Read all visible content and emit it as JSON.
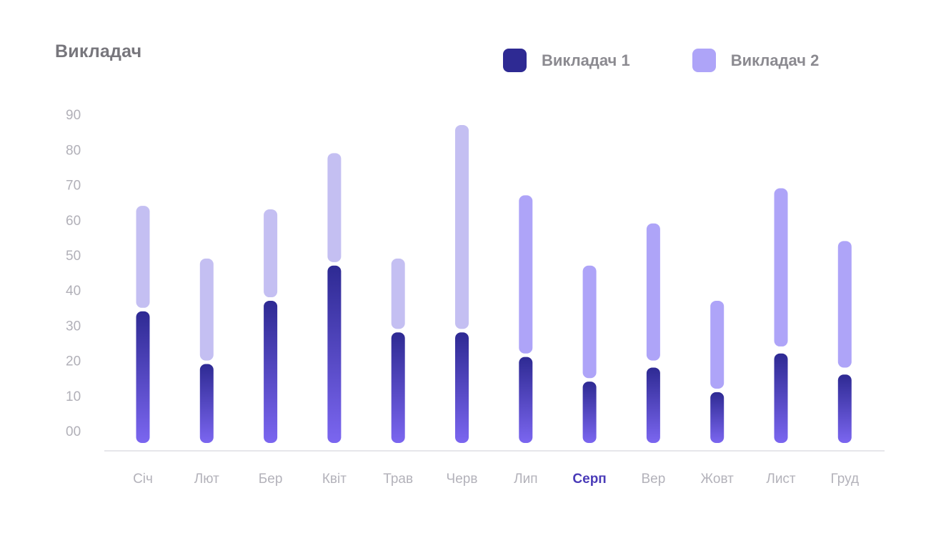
{
  "chart_data": {
    "type": "bar",
    "title": "Викладач",
    "categories": [
      "Січ",
      "Лют",
      "Бер",
      "Квіт",
      "Трав",
      "Черв",
      "Лип",
      "Серп",
      "Вер",
      "Жовт",
      "Лист",
      "Груд"
    ],
    "highlighted_category": "Серп",
    "series": [
      {
        "name": "Викладач 1",
        "color": "#2e2a93",
        "color_bottom": "#7b66f0",
        "values": [
          34,
          19,
          37,
          47,
          28,
          28,
          21,
          14,
          18,
          11,
          22,
          16
        ]
      },
      {
        "name": "Викладач 2",
        "color": "#aea4f8",
        "color_muted": "#c4bff2",
        "ranges": [
          [
            35,
            64
          ],
          [
            20,
            49
          ],
          [
            38,
            63
          ],
          [
            48,
            79
          ],
          [
            29,
            49
          ],
          [
            29,
            87
          ],
          [
            22,
            67
          ],
          [
            15,
            47
          ],
          [
            20,
            59
          ],
          [
            12,
            37
          ],
          [
            24,
            69
          ],
          [
            18,
            54
          ]
        ]
      }
    ],
    "y_ticks": [
      "00",
      "10",
      "20",
      "30",
      "40",
      "50",
      "60",
      "70",
      "80",
      "90"
    ],
    "ylim": [
      0,
      90
    ],
    "legend": "top-right",
    "grid": false
  }
}
